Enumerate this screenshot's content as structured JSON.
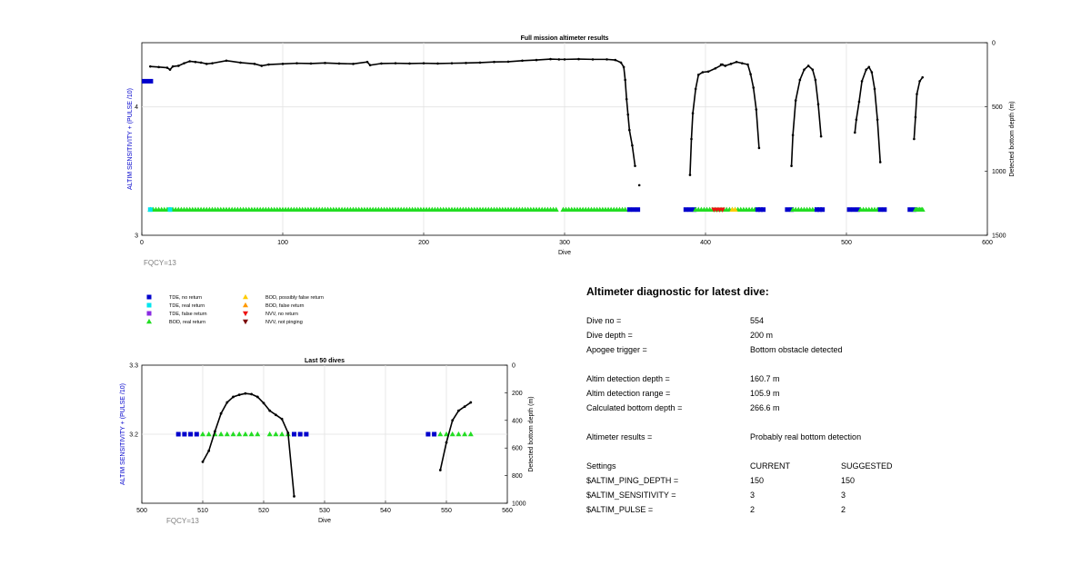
{
  "colors": {
    "tde_no_return": "#0000cc",
    "tde_real_return": "#00e5ee",
    "tde_false_return": "#8a2be2",
    "bod_real_return": "#22dd22",
    "bod_possibly_false": "#ffcc00",
    "bod_false": "#ff9900",
    "nvv_no_return": "#ee1111",
    "nvv_not_pinging": "#7a0000",
    "depth_line": "#000000",
    "left_axis_label": "#0000cc",
    "fqcy_text": "#808080"
  },
  "legend": {
    "items": [
      {
        "label": "TDE, no return",
        "marker": "square",
        "color_key": "tde_no_return"
      },
      {
        "label": "TDE, real return",
        "marker": "square",
        "color_key": "tde_real_return"
      },
      {
        "label": "TDE, false return",
        "marker": "square",
        "color_key": "tde_false_return"
      },
      {
        "label": "BOD, real return",
        "marker": "triangle-up",
        "color_key": "bod_real_return"
      },
      {
        "label": "BOD, possibly false return",
        "marker": "triangle-up",
        "color_key": "bod_possibly_false"
      },
      {
        "label": "BOD, false return",
        "marker": "triangle-up",
        "color_key": "bod_false"
      },
      {
        "label": "NVV, no return",
        "marker": "triangle-down",
        "color_key": "nvv_no_return"
      },
      {
        "label": "NVV, not pinging",
        "marker": "triangle-down",
        "color_key": "nvv_not_pinging"
      }
    ]
  },
  "diagnostic": {
    "title": "Altimeter diagnostic for latest dive:",
    "rows": [
      [
        "Dive no =",
        "554",
        ""
      ],
      [
        "Dive depth =",
        "200 m",
        ""
      ],
      [
        "Apogee trigger =",
        "Bottom obstacle detected",
        ""
      ],
      [
        "",
        "",
        ""
      ],
      [
        "Altim detection depth =",
        "160.7 m",
        ""
      ],
      [
        "Altim detection range =",
        "105.9 m",
        ""
      ],
      [
        "Calculated bottom depth =",
        "266.6 m",
        ""
      ],
      [
        "",
        "",
        ""
      ],
      [
        "Altimeter results =",
        "Probably real bottom detection",
        ""
      ],
      [
        "",
        "",
        ""
      ],
      [
        "Settings",
        "CURRENT",
        "SUGGESTED"
      ],
      [
        "$ALTIM_PING_DEPTH =",
        "150",
        "150"
      ],
      [
        "$ALTIM_SENSITIVITY =",
        "3",
        "3"
      ],
      [
        "$ALTIM_PULSE =",
        "2",
        "2"
      ]
    ]
  },
  "chart_data": [
    {
      "type": "scatter",
      "title": "Full mission altimeter results",
      "xlabel": "Dive",
      "ylabel": "ALTIM SENSITIVITY + (PULSE /10)",
      "ylabel_right": "Detected bottom depth (m)",
      "xlim": [
        0,
        600
      ],
      "ylim": [
        3,
        4.5
      ],
      "ylim_right": [
        1500,
        0
      ],
      "xticks": [
        0,
        100,
        200,
        300,
        400,
        500,
        600
      ],
      "yticks": [
        3,
        4
      ],
      "yticks_right": [
        0,
        500,
        1000,
        1500
      ],
      "grid": true,
      "annotation": "FQCY=13",
      "settings_series": {
        "name": "",
        "x": [
          0,
          8
        ],
        "y": [
          4.2,
          4.2
        ]
      },
      "marker_runs": [
        {
          "category": "bod_real_return",
          "x_from": 6,
          "x_to": 295,
          "step": 2,
          "y": 3.2
        },
        {
          "category": "bod_real_return",
          "x_from": 299,
          "x_to": 344,
          "step": 2,
          "y": 3.2
        },
        {
          "category": "tde_real_return",
          "x_from": 6,
          "x_to": 20,
          "step": 14,
          "y": 3.2
        },
        {
          "category": "tde_no_return",
          "x_from": 346,
          "x_to": 352,
          "step": 3,
          "y": 3.2
        },
        {
          "category": "tde_no_return",
          "x_from": 386,
          "x_to": 392,
          "step": 3,
          "y": 3.2
        },
        {
          "category": "bod_real_return",
          "x_from": 393,
          "x_to": 436,
          "step": 2,
          "y": 3.2
        },
        {
          "category": "tde_no_return",
          "x_from": 437,
          "x_to": 442,
          "step": 2,
          "y": 3.2
        },
        {
          "category": "nvv_no_return",
          "x_from": 406,
          "x_to": 412,
          "step": 2,
          "y": 3.2
        },
        {
          "category": "bod_possibly_false",
          "x_from": 419,
          "x_to": 421,
          "step": 2,
          "y": 3.2
        },
        {
          "category": "tde_no_return",
          "x_from": 458,
          "x_to": 461,
          "step": 3,
          "y": 3.2
        },
        {
          "category": "bod_real_return",
          "x_from": 462,
          "x_to": 478,
          "step": 2,
          "y": 3.2
        },
        {
          "category": "tde_no_return",
          "x_from": 479,
          "x_to": 484,
          "step": 2,
          "y": 3.2
        },
        {
          "category": "tde_no_return",
          "x_from": 502,
          "x_to": 509,
          "step": 3,
          "y": 3.2
        },
        {
          "category": "bod_real_return",
          "x_from": 510,
          "x_to": 523,
          "step": 2,
          "y": 3.2
        },
        {
          "category": "tde_no_return",
          "x_from": 524,
          "x_to": 527,
          "step": 3,
          "y": 3.2
        },
        {
          "category": "tde_no_return",
          "x_from": 545,
          "x_to": 548,
          "step": 3,
          "y": 3.2
        },
        {
          "category": "bod_real_return",
          "x_from": 549,
          "x_to": 554,
          "step": 1,
          "y": 3.2
        }
      ],
      "depth_segments": [
        {
          "name": "",
          "x": [
            6,
            12,
            18,
            20,
            22,
            26,
            30,
            34,
            38,
            42,
            46,
            50,
            60,
            70,
            80,
            85,
            90,
            100,
            110,
            120,
            130,
            140,
            150,
            160,
            162,
            170,
            180,
            190,
            200,
            210,
            220,
            230,
            240,
            250,
            260,
            270,
            280,
            290,
            296,
            300,
            310,
            320,
            330,
            336,
            340,
            342,
            343,
            344,
            345,
            346,
            348,
            350
          ],
          "y": [
            185,
            190,
            195,
            210,
            185,
            180,
            160,
            145,
            150,
            155,
            165,
            160,
            140,
            155,
            165,
            180,
            170,
            165,
            160,
            162,
            158,
            162,
            165,
            150,
            175,
            162,
            160,
            162,
            160,
            162,
            160,
            158,
            155,
            150,
            148,
            140,
            135,
            128,
            130,
            130,
            128,
            130,
            130,
            135,
            155,
            190,
            290,
            440,
            560,
            680,
            800,
            960
          ]
        },
        {
          "name": "",
          "x": [
            353
          ],
          "y": [
            1110
          ]
        },
        {
          "name": "",
          "x": [
            389,
            390,
            391,
            393,
            395,
            398,
            402,
            407,
            412
          ],
          "y": [
            1030,
            750,
            550,
            360,
            250,
            230,
            225,
            200,
            170
          ]
        },
        {
          "name": "",
          "x": [
            411,
            414,
            418,
            422,
            426,
            430,
            432,
            434,
            436,
            438
          ],
          "y": [
            170,
            180,
            165,
            150,
            160,
            170,
            245,
            350,
            520,
            820
          ]
        },
        {
          "name": "",
          "x": [
            461,
            462,
            464,
            467,
            470,
            473,
            476,
            478,
            480,
            482
          ],
          "y": [
            960,
            720,
            450,
            290,
            210,
            180,
            210,
            290,
            480,
            730
          ]
        },
        {
          "name": "",
          "x": [
            506,
            507,
            509,
            511,
            514,
            516,
            518,
            520,
            522,
            524
          ],
          "y": [
            700,
            600,
            460,
            300,
            210,
            190,
            230,
            360,
            600,
            930
          ]
        },
        {
          "name": "",
          "x": [
            548,
            549,
            550,
            552,
            554
          ],
          "y": [
            750,
            580,
            400,
            300,
            270
          ]
        }
      ]
    },
    {
      "type": "scatter",
      "title": "Last 50 dives",
      "xlabel": "Dive",
      "ylabel": "ALTIM SENSITIVITY + (PULSE /10)",
      "ylabel_right": "Detected bottom depth (m)",
      "xlim": [
        500,
        560
      ],
      "ylim": [
        3.1,
        3.3
      ],
      "ylim_right": [
        1000,
        0
      ],
      "xticks": [
        500,
        510,
        520,
        530,
        540,
        550,
        560
      ],
      "yticks": [
        3.2,
        3.3
      ],
      "yticks_right": [
        0,
        200,
        400,
        600,
        800,
        1000
      ],
      "grid": true,
      "annotation": "FQCY=13",
      "markers": [
        {
          "category": "tde_no_return",
          "x": [
            506,
            507,
            508,
            509,
            525,
            526,
            527,
            547,
            548
          ],
          "y": 3.2
        },
        {
          "category": "bod_real_return",
          "x": [
            510,
            511,
            512,
            513,
            514,
            515,
            516,
            517,
            518,
            519,
            521,
            522,
            523,
            524,
            549,
            550,
            551,
            552,
            553,
            554
          ],
          "y": 3.2
        }
      ],
      "depth_segments": [
        {
          "name": "",
          "x": [
            510,
            511,
            512,
            513,
            514,
            515,
            516,
            517,
            518,
            519,
            520,
            521,
            522,
            523,
            524,
            525
          ],
          "y": [
            700,
            620,
            480,
            350,
            270,
            230,
            215,
            205,
            210,
            230,
            275,
            330,
            360,
            390,
            490,
            950
          ]
        },
        {
          "name": "",
          "x": [
            549,
            550,
            551,
            552,
            553,
            554
          ],
          "y": [
            760,
            560,
            400,
            330,
            300,
            270
          ]
        }
      ]
    }
  ]
}
